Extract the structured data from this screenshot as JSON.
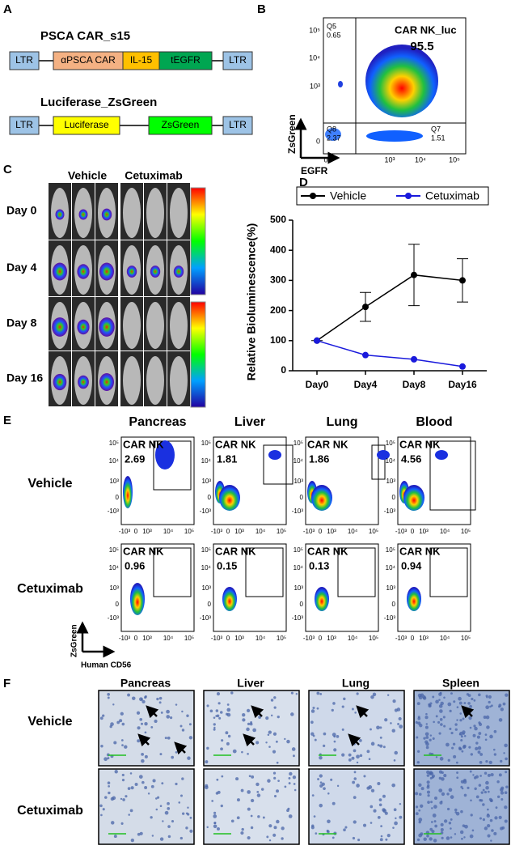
{
  "panel_labels": [
    "A",
    "B",
    "C",
    "D",
    "E",
    "F"
  ],
  "panel_a": {
    "constructs": [
      {
        "title": "PSCA CAR_s15",
        "segments": [
          "LTR",
          "αPSCA CAR",
          "IL-15",
          "tEGFR",
          "LTR"
        ]
      },
      {
        "title": "Luciferase_ZsGreen",
        "segments": [
          "LTR",
          "Luciferase",
          "ZsGreen",
          "LTR"
        ]
      }
    ]
  },
  "panel_b": {
    "title": "CAR NK_luc",
    "value": 95.5,
    "quadrants": [
      {
        "name": "Q5",
        "value": 0.65
      },
      {
        "name": "Q8",
        "value": 2.37
      },
      {
        "name": "Q7",
        "value": 1.51
      }
    ],
    "y_label": "ZsGreen",
    "x_label": "EGFR",
    "y_ticks": [
      "10⁵",
      "10⁴",
      "10³",
      "0"
    ],
    "x_ticks": [
      "0",
      "10³",
      "10⁴",
      "10⁵"
    ]
  },
  "panel_c": {
    "columns": [
      "Vehicle",
      "Cetuximab"
    ],
    "rows": [
      "Day 0",
      "Day 4",
      "Day 8",
      "Day 16"
    ]
  },
  "chart_data": {
    "type": "line",
    "categories": [
      "Day0",
      "Day4",
      "Day8",
      "Day16"
    ],
    "y_label": "Relative Bioluminescence(%)",
    "series": [
      {
        "name": "Vehicle",
        "color": "#000000",
        "values": [
          100,
          212,
          318,
          300
        ],
        "errors": [
          0,
          48,
          102,
          72
        ]
      },
      {
        "name": "Cetuximab",
        "color": "#1a1adc",
        "values": [
          100,
          52,
          38,
          14
        ]
      }
    ],
    "ylim": [
      0,
      500
    ],
    "yticks": [
      0,
      100,
      200,
      300,
      400,
      500
    ]
  },
  "panel_e": {
    "gate_label": "CAR NK",
    "tissues": [
      "Pancreas",
      "Liver",
      "Lung",
      "Blood"
    ],
    "rows": [
      {
        "name": "Vehicle",
        "values": [
          2.69,
          1.81,
          1.86,
          4.56
        ]
      },
      {
        "name": "Cetuximab",
        "values": [
          0.96,
          0.15,
          0.13,
          0.94
        ]
      }
    ],
    "y_ticks": [
      "10⁵",
      "10⁴",
      "10³",
      "0",
      "-10³"
    ],
    "x_ticks": [
      "-10³",
      "0",
      "10³",
      "10⁴",
      "10⁵"
    ],
    "y_label": "ZsGreen",
    "x_label": "Human CD56"
  },
  "panel_f": {
    "tissues": [
      "Pancreas",
      "Liver",
      "Lung",
      "Spleen"
    ],
    "rows": [
      "Vehicle",
      "Cetuximab"
    ]
  }
}
